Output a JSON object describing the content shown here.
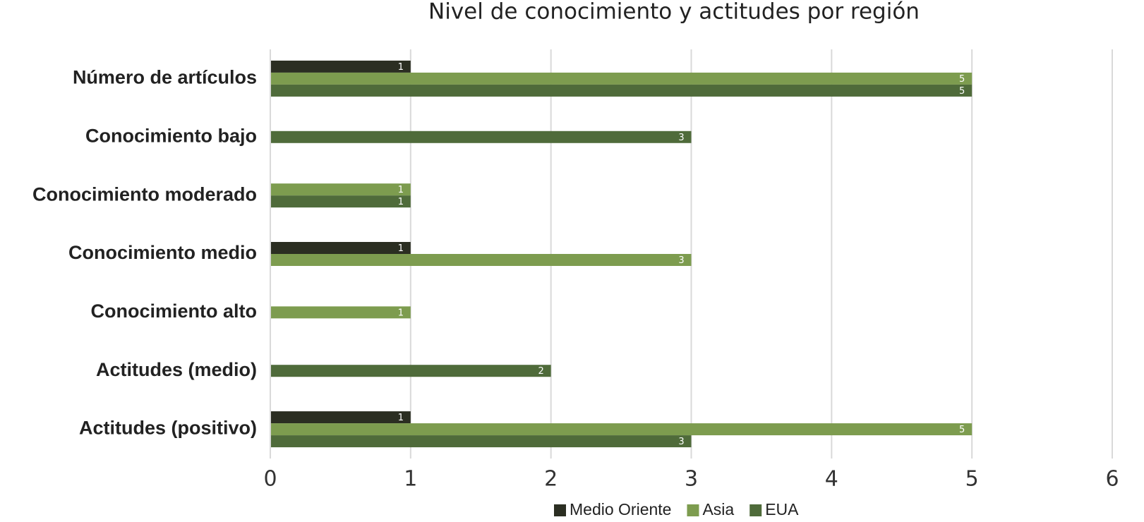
{
  "chart_data": {
    "type": "hbar",
    "title": "Nivel de conocimiento y actitudes por región",
    "categories": [
      "Número de artículos",
      "Conocimiento bajo",
      "Conocimiento moderado",
      "Conocimiento medio",
      "Conocimiento alto",
      "Actitudes (medio)",
      "Actitudes (positivo)"
    ],
    "series": [
      {
        "name": "Medio Oriente",
        "color": "#2b2e22",
        "values": [
          1,
          null,
          null,
          1,
          null,
          null,
          1
        ]
      },
      {
        "name": "Asia",
        "color": "#7d9c4f",
        "values": [
          5,
          null,
          1,
          3,
          1,
          null,
          5
        ]
      },
      {
        "name": "EUA",
        "color": "#4f6b3a",
        "values": [
          5,
          3,
          1,
          null,
          null,
          2,
          3
        ]
      }
    ],
    "xlim": [
      0,
      6
    ],
    "xticks": [
      0,
      1,
      2,
      3,
      4,
      5,
      6
    ],
    "grid": true,
    "legend": "bottom"
  }
}
